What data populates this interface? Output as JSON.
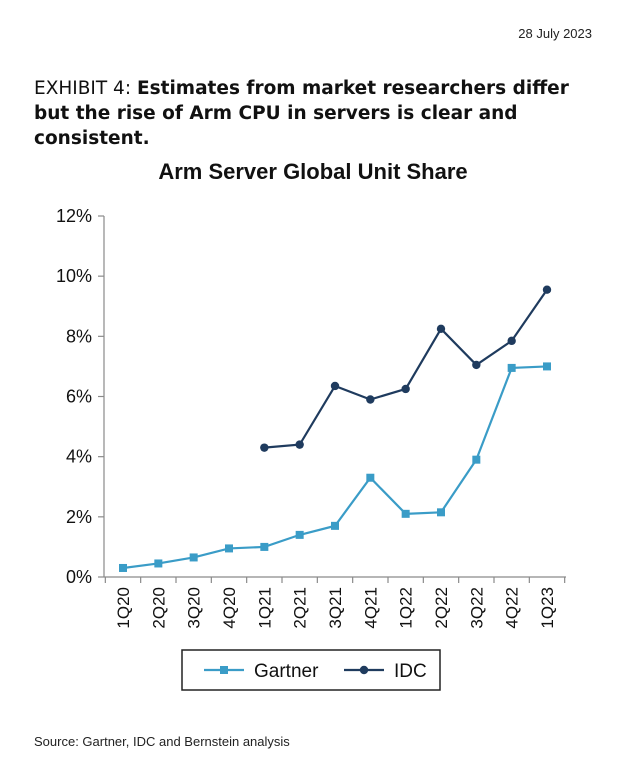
{
  "header": {
    "date": "28 July 2023",
    "exhibit_label": "EXHIBIT 4:",
    "exhibit_headline": "Estimates from market researchers differ but the rise of Arm CPU in servers is clear and consistent."
  },
  "footer": {
    "source": "Source: Gartner, IDC and Bernstein analysis"
  },
  "chart_data": {
    "type": "line",
    "title": "Arm Server Global Unit Share",
    "xlabel": "",
    "ylabel": "",
    "ylim": [
      0,
      12
    ],
    "y_ticks": [
      0,
      2,
      4,
      6,
      8,
      10,
      12
    ],
    "y_tick_labels": [
      "0%",
      "2%",
      "4%",
      "6%",
      "8%",
      "10%",
      "12%"
    ],
    "categories": [
      "1Q20",
      "2Q20",
      "3Q20",
      "4Q20",
      "1Q21",
      "2Q21",
      "3Q21",
      "4Q21",
      "1Q22",
      "2Q22",
      "3Q22",
      "4Q22",
      "1Q23"
    ],
    "series": [
      {
        "name": "Gartner",
        "marker": "square",
        "color": "#3a9cc7",
        "values": [
          0.3,
          0.45,
          0.65,
          0.95,
          1.0,
          1.4,
          1.7,
          3.3,
          2.1,
          2.15,
          3.9,
          6.95,
          7.0
        ]
      },
      {
        "name": "IDC",
        "marker": "circle",
        "color": "#1f3b5e",
        "values": [
          null,
          null,
          null,
          null,
          4.3,
          4.4,
          6.35,
          5.9,
          6.25,
          8.25,
          7.05,
          7.85,
          9.55
        ]
      }
    ],
    "legend_position": "bottom",
    "grid": false
  }
}
